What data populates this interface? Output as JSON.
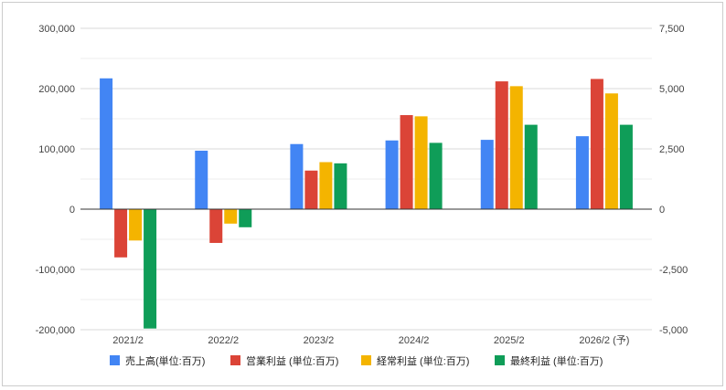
{
  "chart_data": {
    "type": "bar",
    "categories": [
      "2021/2",
      "2022/2",
      "2023/2",
      "2024/2",
      "2025/2",
      "2026/2 (予)"
    ],
    "series": [
      {
        "name": "売上高(単位:百万)",
        "color": "#4285f4",
        "axis": "left",
        "values": [
          217000,
          97000,
          108000,
          114000,
          115000,
          121000
        ]
      },
      {
        "name": "営業利益 (単位:百万)",
        "color": "#db4437",
        "axis": "right",
        "values": [
          -2000,
          -1400,
          1600,
          3900,
          5300,
          5400
        ]
      },
      {
        "name": "経常利益 (単位:百万)",
        "color": "#f4b400",
        "axis": "right",
        "values": [
          -1300,
          -600,
          1950,
          3850,
          5100,
          4800
        ]
      },
      {
        "name": "最終利益 (単位:百万)",
        "color": "#0f9d58",
        "axis": "right",
        "values": [
          -4950,
          -750,
          1900,
          2750,
          3500,
          3500
        ]
      }
    ],
    "left_axis": {
      "ylim": [
        -200000,
        300000
      ],
      "ticks": [
        -200000,
        -100000,
        0,
        100000,
        200000,
        300000
      ],
      "tick_labels": [
        "-200,000",
        "-100,000",
        "0",
        "100,000",
        "200,000",
        "300,000"
      ]
    },
    "right_axis": {
      "ylim": [
        -5000,
        7500
      ],
      "ticks": [
        -5000,
        -2500,
        0,
        2500,
        5000,
        7500
      ],
      "tick_labels": [
        "-5,000",
        "-2,500",
        "0",
        "2,500",
        "5,000",
        "7,500"
      ]
    },
    "grid": true,
    "legend": "bottom"
  }
}
